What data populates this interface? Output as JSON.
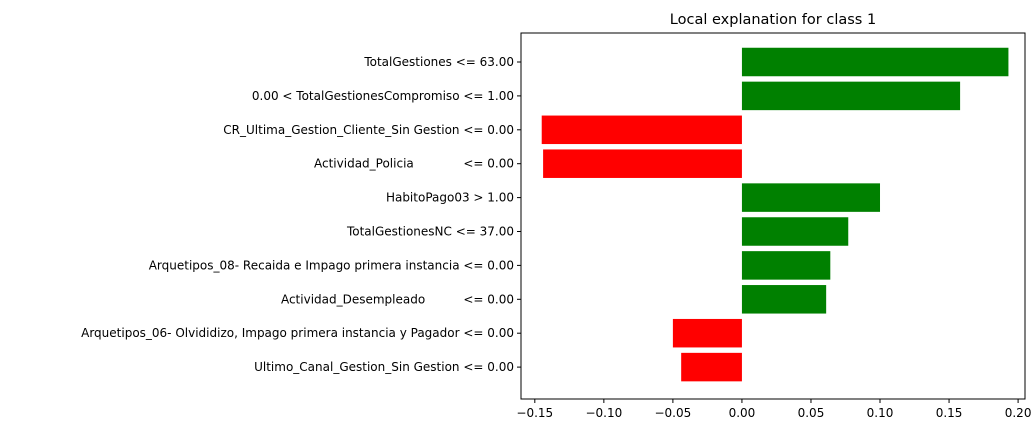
{
  "chart_data": {
    "type": "bar",
    "orientation": "horizontal",
    "title": "Local explanation for class 1",
    "xlabel": "",
    "ylabel": "",
    "xlim": [
      -0.16,
      0.205
    ],
    "grid": false,
    "legend": "none",
    "categories": [
      "TotalGestiones <= 63.00",
      "0.00 < TotalGestionesCompromiso <= 1.00",
      "CR_Ultima_Gestion_Cliente_Sin Gestion <= 0.00",
      "Actividad_Policia             <= 0.00",
      "HabitoPago03 > 1.00",
      "TotalGestionesNC <= 37.00",
      "Arquetipos_08- Recaida e Impago primera instancia <= 0.00",
      "Actividad_Desempleado          <= 0.00",
      "Arquetipos_06- Olvididizo, Impago primera instancia y Pagador <= 0.00",
      "Ultimo_Canal_Gestion_Sin Gestion <= 0.00"
    ],
    "values": [
      0.193,
      0.158,
      -0.145,
      -0.144,
      0.1,
      0.077,
      0.064,
      0.061,
      -0.05,
      -0.044
    ],
    "x_ticks": [
      -0.15,
      -0.1,
      -0.05,
      0.0,
      0.05,
      0.1,
      0.15,
      0.2
    ],
    "x_tick_labels": [
      "−0.15",
      "−0.10",
      "−0.05",
      "0.00",
      "0.05",
      "0.10",
      "0.15",
      "0.20"
    ],
    "colors": {
      "positive": "#008000",
      "negative": "#ff0000",
      "axis": "#000000"
    }
  }
}
